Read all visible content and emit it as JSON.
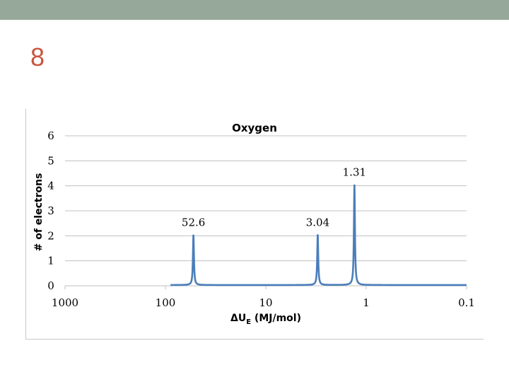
{
  "slide": {
    "number": "8"
  },
  "colors": {
    "top_bar": "#96a89a",
    "slide_number": "#c8553d",
    "series": "#4a7ebb",
    "grid": "#c0c0c0"
  },
  "chart_data": {
    "type": "line",
    "title": "Oxygen",
    "xlabel": "ΔU",
    "xlabel_sub": "E",
    "xlabel_unit": "(MJ/mol)",
    "ylabel": "# of electrons",
    "x_scale": "log",
    "x_reversed": true,
    "xlim": [
      1000,
      0.1
    ],
    "ylim": [
      0,
      6
    ],
    "x_ticks": [
      1000,
      100,
      10,
      1,
      0.1
    ],
    "x_tick_labels": [
      "1000",
      "100",
      "10",
      "1",
      "0.1"
    ],
    "y_ticks": [
      0,
      1,
      2,
      3,
      4,
      5,
      6
    ],
    "y_tick_labels": [
      "0",
      "1",
      "2",
      "3",
      "4",
      "5",
      "6"
    ],
    "grid": "horizontal",
    "series": [
      {
        "peaks": [
          {
            "x": 52.6,
            "y": 2,
            "label": "52.6"
          },
          {
            "x": 3.04,
            "y": 2,
            "label": "3.04"
          },
          {
            "x": 1.31,
            "y": 4,
            "label": "1.31"
          }
        ]
      }
    ]
  }
}
